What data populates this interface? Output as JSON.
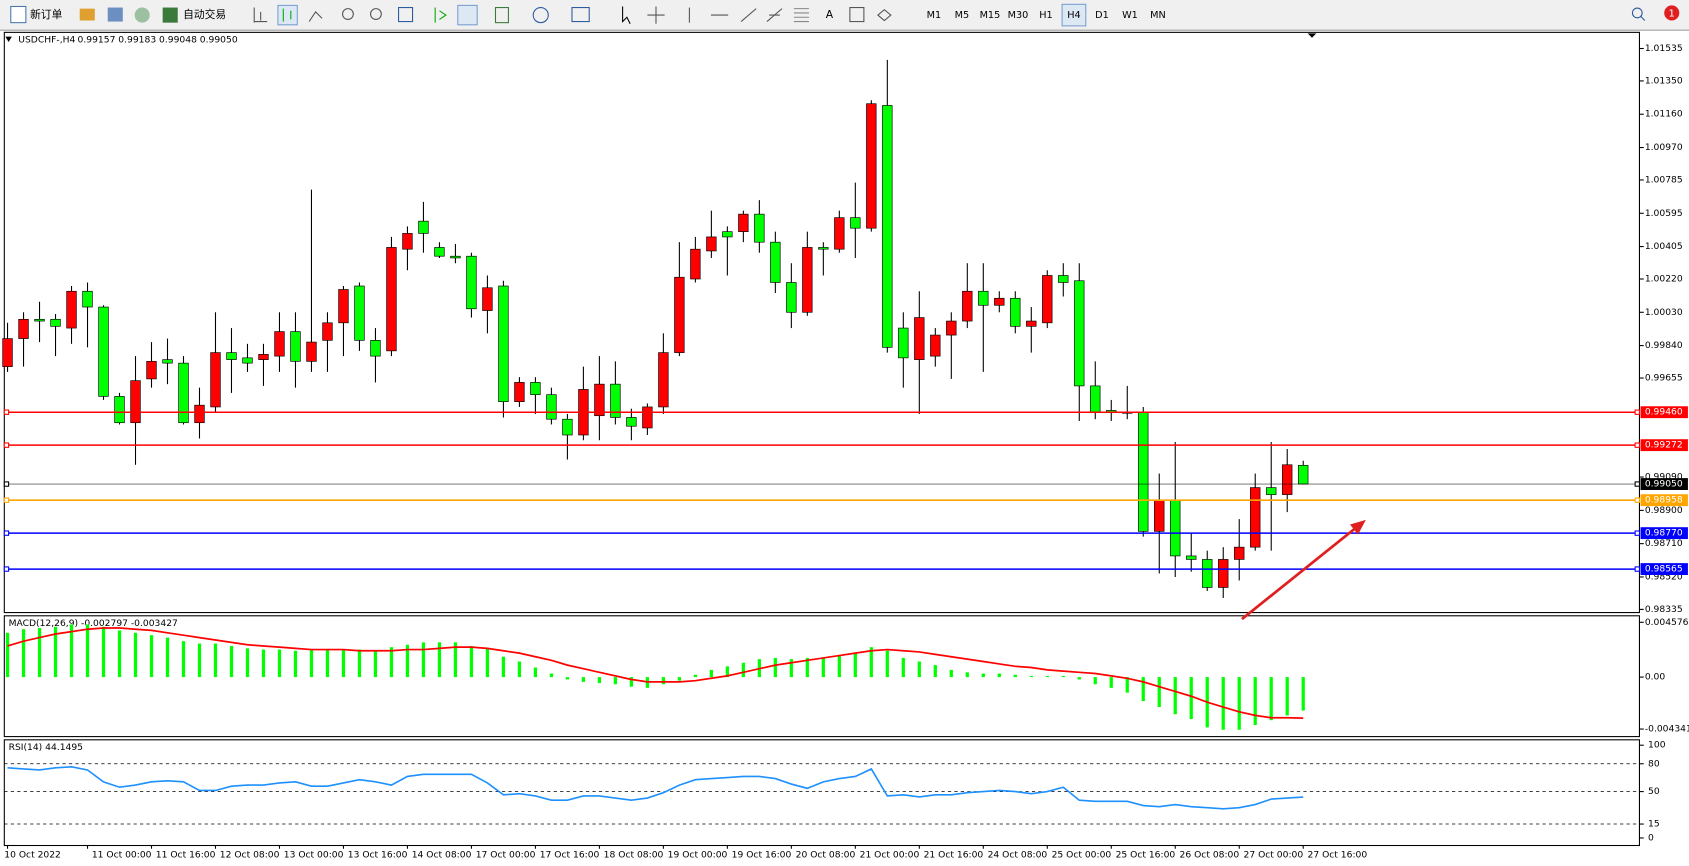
{
  "toolbar": {
    "new_order": "新订单",
    "auto_trading": "自动交易",
    "text_tool": "A",
    "timeframes": [
      {
        "label": "M1"
      },
      {
        "label": "M5"
      },
      {
        "label": "M15"
      },
      {
        "label": "M30"
      },
      {
        "label": "H1"
      },
      {
        "label": "H4",
        "selected": true
      },
      {
        "label": "D1"
      },
      {
        "label": "W1"
      },
      {
        "label": "MN"
      }
    ],
    "notifications": 1
  },
  "chart_data": [
    {
      "type": "candlestick",
      "title": "USDCHF-,H4",
      "subtitle": "0.99157 0.99183 0.99048 0.99050",
      "up_color": "#ff0000",
      "down_color": "#00ff00",
      "categories": [
        "10 Oct 2022",
        null,
        null,
        null,
        null,
        "11 Oct 00:00",
        null,
        null,
        null,
        "11 Oct 16:00",
        null,
        null,
        null,
        "12 Oct 08:00",
        null,
        null,
        null,
        "13 Oct 00:00",
        null,
        null,
        null,
        "13 Oct 16:00",
        null,
        null,
        null,
        "14 Oct 08:00",
        null,
        null,
        null,
        "17 Oct 00:00",
        null,
        null,
        null,
        "17 Oct 16:00",
        null,
        null,
        null,
        "18 Oct 08:00",
        null,
        null,
        null,
        "19 Oct 00:00",
        null,
        null,
        null,
        "19 Oct 16:00",
        null,
        null,
        null,
        "20 Oct 08:00",
        null,
        null,
        null,
        "21 Oct 00:00",
        null,
        null,
        null,
        "21 Oct 16:00",
        null,
        null,
        null,
        "24 Oct 08:00",
        null,
        null,
        null,
        "25 Oct 00:00",
        null,
        null,
        null,
        "25 Oct 16:00",
        null,
        null,
        null,
        "26 Oct 08:00",
        null,
        null,
        null,
        "27 Oct 00:00",
        null,
        null,
        null,
        "27 Oct 16:00"
      ],
      "open": [
        0.9972,
        0.9988,
        0.9999,
        0.9999,
        0.9994,
        1.0015,
        1.0006,
        0.9955,
        0.994,
        0.9965,
        0.9976,
        0.9974,
        0.994,
        0.9949,
        0.998,
        0.9977,
        0.9976,
        0.9978,
        0.9992,
        0.9975,
        0.9987,
        0.9997,
        1.0018,
        0.9987,
        0.9981,
        1.0039,
        1.0055,
        1.004,
        1.0035,
        1.0035,
        1.0004,
        1.0018,
        0.9952,
        0.9963,
        0.9956,
        0.9942,
        0.9933,
        0.9944,
        0.9962,
        0.9943,
        0.9937,
        0.9949,
        0.998,
        1.0022,
        1.0038,
        1.0049,
        1.0049,
        1.0059,
        1.0043,
        1.002,
        1.0003,
        1.004,
        1.0039,
        1.0057,
        1.0051,
        1.0121,
        0.9994,
        0.9976,
        0.9978,
        0.999,
        0.9998,
        1.0015,
        1.0007,
        1.0011,
        0.9995,
        0.9997,
        1.0024,
        1.0021,
        0.9961,
        0.9947,
        0.9946,
        0.9946,
        0.9878,
        0.9896,
        0.9864,
        0.9862,
        0.9846,
        0.9862,
        0.9869,
        0.9903,
        0.9899,
        0.99157
      ],
      "high": [
        0.9997,
        1.0003,
        1.0009,
        1.0002,
        1.0018,
        1.002,
        1.0007,
        0.9957,
        0.9978,
        0.9986,
        0.9988,
        0.9978,
        0.996,
        1.0003,
        0.9994,
        0.9985,
        0.9985,
        1.0003,
        1.0003,
        1.0073,
        1.0003,
        1.0018,
        1.002,
        0.9994,
        1.0046,
        1.0052,
        1.0066,
        1.0043,
        1.0042,
        1.0037,
        1.0024,
        1.0021,
        0.9966,
        0.9966,
        0.996,
        0.9945,
        0.9972,
        0.9978,
        0.9975,
        0.9948,
        0.9951,
        0.9991,
        1.0043,
        1.0046,
        1.0061,
        1.0052,
        1.0061,
        1.0067,
        1.0049,
        1.0031,
        1.0049,
        1.0043,
        1.0061,
        1.0077,
        1.0124,
        1.0147,
        1.0003,
        1.0015,
        0.9994,
        1.0003,
        1.0031,
        1.0031,
        1.0015,
        1.0015,
        1.0006,
        1.0027,
        1.0031,
        1.0031,
        0.9975,
        0.9953,
        0.9961,
        0.9949,
        0.9911,
        0.9929,
        0.9877,
        0.9867,
        0.9869,
        0.9885,
        0.9911,
        0.9929,
        0.9925,
        0.99183
      ],
      "low": [
        0.9969,
        0.9972,
        0.9986,
        0.9978,
        0.9985,
        0.9983,
        0.9953,
        0.9939,
        0.9916,
        0.996,
        0.9962,
        0.9939,
        0.9931,
        0.9946,
        0.9957,
        0.9969,
        0.9961,
        0.9969,
        0.996,
        0.9969,
        0.9969,
        0.9978,
        0.9981,
        0.9963,
        0.9978,
        1.0027,
        1.0037,
        1.0034,
        1.0031,
        1.0,
        0.9991,
        0.9943,
        0.9949,
        0.9945,
        0.9939,
        0.9919,
        0.993,
        0.993,
        0.9939,
        0.993,
        0.9933,
        0.9945,
        0.9978,
        1.002,
        1.0034,
        1.0024,
        1.0043,
        1.0037,
        1.0014,
        0.9994,
        1.0001,
        1.0024,
        1.0037,
        1.0034,
        1.0049,
        0.998,
        0.996,
        0.9945,
        0.9972,
        0.9965,
        0.9994,
        0.9969,
        1.0003,
        0.9991,
        0.998,
        0.9994,
        1.0012,
        0.9941,
        0.9942,
        0.9941,
        0.9942,
        0.9875,
        0.9854,
        0.9852,
        0.9855,
        0.9844,
        0.984,
        0.985,
        0.9867,
        0.9867,
        0.9889,
        0.99048
      ],
      "close": [
        0.9988,
        0.9999,
        0.9998,
        0.9995,
        1.0015,
        1.0006,
        0.9955,
        0.994,
        0.9964,
        0.9975,
        0.9974,
        0.994,
        0.995,
        0.998,
        0.9976,
        0.9974,
        0.9979,
        0.9992,
        0.9975,
        0.9986,
        0.9997,
        1.0016,
        0.9987,
        0.9978,
        1.004,
        1.0048,
        1.0048,
        1.0035,
        1.0034,
        1.0005,
        1.0017,
        0.9952,
        0.9963,
        0.9956,
        0.9942,
        0.9933,
        0.9959,
        0.9962,
        0.9943,
        0.9938,
        0.9949,
        0.998,
        1.0023,
        1.0039,
        1.0046,
        1.0046,
        1.0059,
        1.0043,
        1.002,
        1.0003,
        1.004,
        1.0039,
        1.0057,
        1.0051,
        1.0122,
        0.9983,
        0.9977,
        1.0,
        0.999,
        0.9998,
        1.0015,
        1.0007,
        1.0011,
        0.9995,
        0.9998,
        1.0024,
        1.002,
        0.9961,
        0.9946,
        0.9946,
        0.9946,
        0.9878,
        0.9896,
        0.9864,
        0.9862,
        0.9846,
        0.9862,
        0.9869,
        0.9903,
        0.9899,
        0.9916,
        0.9905
      ],
      "ylim": [
        0.98323,
        1.01621
      ],
      "yticks": [
        1.01535,
        {
          "value": 1.0135,
          "label": "1.01350"
        },
        {
          "value": 1.0116,
          "label": "1.01160"
        },
        {
          "value": 1.0097,
          "label": "1.00970"
        },
        1.00785,
        1.00595,
        1.00405,
        {
          "value": 1.0022,
          "label": "1.00220"
        },
        {
          "value": 1.0003,
          "label": "1.00030"
        },
        {
          "value": 0.9984,
          "label": "0.99840"
        },
        0.99655,
        {
          "value": 0.9909,
          "label": "0.99090"
        },
        {
          "value": 0.989,
          "label": "0.98900"
        },
        {
          "value": 0.9871,
          "label": "0.98710"
        },
        {
          "value": 0.9852,
          "label": "0.98520"
        },
        0.98335
      ],
      "levels": [
        {
          "value": 0.9946,
          "label": "0.99460",
          "color": "#ff0000"
        },
        {
          "value": 0.99272,
          "label": "0.99272",
          "color": "#ff0000"
        },
        {
          "value": 0.9905,
          "label": "0.99050",
          "color": "#000000"
        },
        {
          "value": 0.98958,
          "label": "0.98958",
          "color": "#ffa500"
        },
        {
          "value": 0.9877,
          "label": "0.98770",
          "color": "#0000ff"
        },
        {
          "value": 0.98565,
          "label": "0.98565",
          "color": "#0000ff"
        }
      ]
    },
    {
      "type": "macd",
      "title": "MACD(12,26,9) -0.002797 -0.003427",
      "series": [
        {
          "type": "bar",
          "color": "#00ff00",
          "values": [
            0.0037,
            0.004,
            0.0041,
            0.0042,
            0.0044,
            0.0044,
            0.0042,
            0.0039,
            0.0037,
            0.0035,
            0.0033,
            0.003,
            0.0028,
            0.0028,
            0.0026,
            0.0024,
            0.0023,
            0.0023,
            0.0022,
            0.0023,
            0.0023,
            0.0023,
            0.0023,
            0.0022,
            0.0025,
            0.0027,
            0.0029,
            0.0029,
            0.0029,
            0.0026,
            0.0024,
            0.0017,
            0.0013,
            0.0008,
            0.0003,
            -0.0002,
            -0.0004,
            -0.0005,
            -0.0006,
            -0.0008,
            -0.0009,
            -0.0006,
            -0.0003,
            0.0002,
            0.0006,
            0.0009,
            0.0012,
            0.0015,
            0.0016,
            0.0015,
            0.0016,
            0.0016,
            0.0018,
            0.002,
            0.0025,
            0.0022,
            0.0016,
            0.0013,
            0.001,
            0.0006,
            0.0004,
            0.0003,
            0.0003,
            0.0002,
            0.0001,
            0.0001,
            0.0001,
            -0.0002,
            -0.0006,
            -0.0009,
            -0.0013,
            -0.002,
            -0.0025,
            -0.0031,
            -0.0035,
            -0.0042,
            -0.0044,
            -0.0044,
            -0.004,
            -0.0036,
            -0.0032,
            -0.002797
          ]
        },
        {
          "type": "line",
          "color": "#ff0000",
          "values": [
            0.0026,
            0.003,
            0.0033,
            0.0036,
            0.0038,
            0.004,
            0.0041,
            0.0041,
            0.004,
            0.0039,
            0.0037,
            0.0035,
            0.0033,
            0.0031,
            0.0029,
            0.0027,
            0.0026,
            0.0025,
            0.0024,
            0.0023,
            0.0023,
            0.0023,
            0.0022,
            0.0022,
            0.0022,
            0.0023,
            0.0023,
            0.0024,
            0.0025,
            0.0025,
            0.0024,
            0.0022,
            0.002,
            0.0017,
            0.0014,
            0.001,
            0.0007,
            0.0004,
            0.0001,
            -0.0002,
            -0.0004,
            -0.0004,
            -0.0004,
            -0.0003,
            -0.0001,
            0.0001,
            0.0004,
            0.0007,
            0.001,
            0.0012,
            0.0014,
            0.0016,
            0.0018,
            0.002,
            0.0022,
            0.0023,
            0.0022,
            0.0021,
            0.0019,
            0.0017,
            0.0015,
            0.0013,
            0.0011,
            0.0009,
            0.0008,
            0.0006,
            0.0005,
            0.0004,
            0.0003,
            0.0001,
            -0.0001,
            -0.0004,
            -0.0008,
            -0.0012,
            -0.0016,
            -0.0021,
            -0.0025,
            -0.0029,
            -0.0032,
            -0.0034,
            -0.0034,
            -0.003427
          ]
        }
      ],
      "ylim": [
        -0.00488,
        0.00503
      ],
      "yticks": [
        0.004576,
        {
          "value": 0,
          "label": "0.00"
        },
        -0.004341
      ]
    },
    {
      "type": "line",
      "title": "RSI(14) 44.1495",
      "color": "#1e90ff",
      "values": [
        75.6,
        74.4,
        73.3,
        75.6,
        76.7,
        73.3,
        60.5,
        54.7,
        57.0,
        60.5,
        61.6,
        60.5,
        51.2,
        51.2,
        55.8,
        57.0,
        57.0,
        59.3,
        60.5,
        55.8,
        55.8,
        59.3,
        62.8,
        60.5,
        57.0,
        66.3,
        68.6,
        68.6,
        68.6,
        68.6,
        59.3,
        46.5,
        47.7,
        45.3,
        40.7,
        40.7,
        45.3,
        45.3,
        43.0,
        40.7,
        43.0,
        48.8,
        57.0,
        62.8,
        64.0,
        65.1,
        66.3,
        66.3,
        64.0,
        58.1,
        53.5,
        60.5,
        64.0,
        66.3,
        74.4,
        45.3,
        46.5,
        44.2,
        46.5,
        46.5,
        48.8,
        50.0,
        51.2,
        50.0,
        47.7,
        50.0,
        54.7,
        40.7,
        39.5,
        39.5,
        39.5,
        34.9,
        33.7,
        36.0,
        33.7,
        32.6,
        31.4,
        32.6,
        36.0,
        41.9,
        43.0,
        44.1495
      ],
      "ylim": [
        0,
        100
      ],
      "yticks": [
        100,
        80,
        50,
        15,
        0
      ]
    }
  ]
}
